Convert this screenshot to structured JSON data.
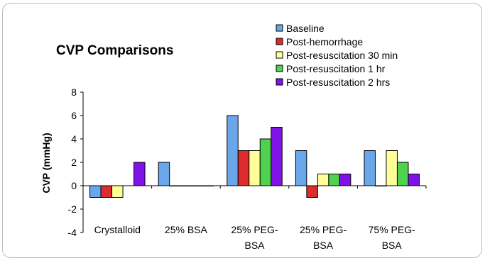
{
  "chart_data": {
    "type": "bar",
    "title": "CVP Comparisons",
    "ylabel": "CVP (mmHg)",
    "xlabel": "",
    "ylim": [
      -4,
      8
    ],
    "yticks": [
      -4,
      -2,
      0,
      2,
      4,
      6,
      8
    ],
    "categories": [
      [
        "Crystalloid"
      ],
      [
        "25% BSA"
      ],
      [
        "25% PEG-",
        "BSA"
      ],
      [
        "25% PEG-",
        "BSA"
      ],
      [
        "75% PEG-",
        "BSA"
      ]
    ],
    "series": [
      {
        "name": "Baseline",
        "color": "#6aa6ea",
        "values": [
          -1,
          2,
          6,
          3,
          3
        ]
      },
      {
        "name": "Post-hemorrhage",
        "color": "#dc2c2c",
        "values": [
          -1,
          0,
          3,
          -1,
          0
        ]
      },
      {
        "name": "Post-resuscitation 30 min",
        "color": "#ffff99",
        "values": [
          -1,
          0,
          3,
          1,
          3
        ]
      },
      {
        "name": "Post-resuscitation 1 hr",
        "color": "#4fd24f",
        "values": [
          null,
          0,
          4,
          1,
          2
        ]
      },
      {
        "name": "Post-resuscitation 2 hrs",
        "color": "#7f12e6",
        "values": [
          2,
          0,
          5,
          1,
          1
        ]
      }
    ],
    "legend_position": "top-right",
    "grid": false
  }
}
